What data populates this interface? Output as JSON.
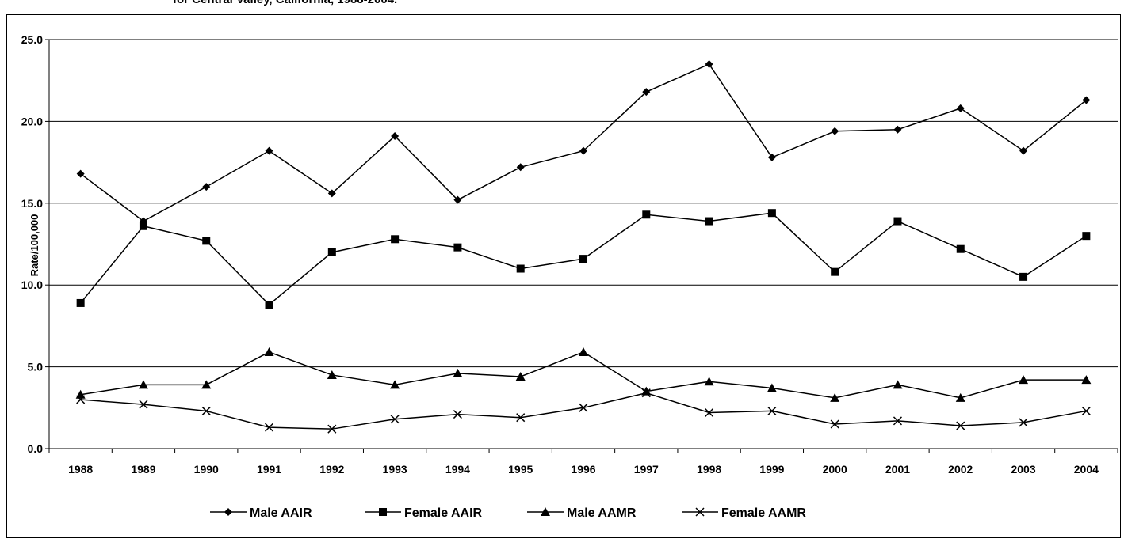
{
  "title": "for Central Valley, California, 1988-2004.",
  "chart_data": {
    "type": "line",
    "title": "for Central Valley, California, 1988-2004.",
    "xlabel": "",
    "ylabel": "Rate/100,000",
    "ylim": [
      0,
      25
    ],
    "yticks": [
      "0.0",
      "5.0",
      "10.0",
      "15.0",
      "20.0",
      "25.0"
    ],
    "grid": "horizontal",
    "legend_position": "bottom",
    "categories": [
      "1988",
      "1989",
      "1990",
      "1991",
      "1992",
      "1993",
      "1994",
      "1995",
      "1996",
      "1997",
      "1998",
      "1999",
      "2000",
      "2001",
      "2002",
      "2003",
      "2004"
    ],
    "series": [
      {
        "name": "Male AAIR",
        "marker": "diamond",
        "values": [
          16.8,
          13.9,
          16.0,
          18.2,
          15.6,
          19.1,
          15.2,
          17.2,
          18.2,
          21.8,
          23.5,
          17.8,
          19.4,
          19.5,
          20.8,
          18.2,
          21.3
        ]
      },
      {
        "name": "Female AAIR",
        "marker": "square",
        "values": [
          8.9,
          13.6,
          12.7,
          8.8,
          12.0,
          12.8,
          12.3,
          11.0,
          11.6,
          14.3,
          13.9,
          14.4,
          10.8,
          13.9,
          12.2,
          10.5,
          13.0
        ]
      },
      {
        "name": "Male AAMR",
        "marker": "triangle",
        "values": [
          3.3,
          3.9,
          3.9,
          5.9,
          4.5,
          3.9,
          4.6,
          4.4,
          5.9,
          3.5,
          4.1,
          3.7,
          3.1,
          3.9,
          3.1,
          4.2,
          4.2
        ]
      },
      {
        "name": "Female AAMR",
        "marker": "x",
        "values": [
          3.0,
          2.7,
          2.3,
          1.3,
          1.2,
          1.8,
          2.1,
          1.9,
          2.5,
          3.4,
          2.2,
          2.3,
          1.5,
          1.7,
          1.4,
          1.6,
          2.3
        ]
      }
    ]
  }
}
